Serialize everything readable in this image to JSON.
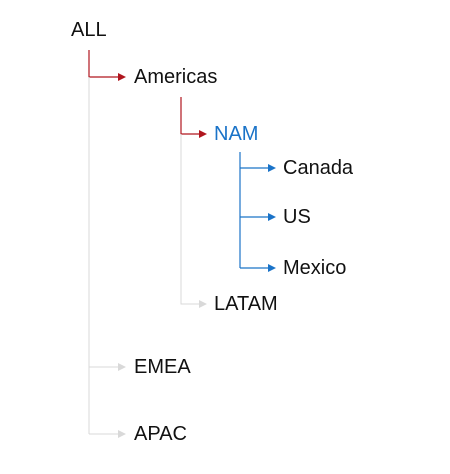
{
  "colors": {
    "active_path": "#b0161e",
    "child_path": "#1a73c8",
    "inactive_path": "#d9d9d9",
    "text": "#111111",
    "selected_text": "#1a73c8"
  },
  "tree": {
    "root": {
      "label": "ALL"
    },
    "americas": {
      "label": "Americas"
    },
    "nam": {
      "label": "NAM"
    },
    "canada": {
      "label": "Canada"
    },
    "us": {
      "label": "US"
    },
    "mexico": {
      "label": "Mexico"
    },
    "latam": {
      "label": "LATAM"
    },
    "emea": {
      "label": "EMEA"
    },
    "apac": {
      "label": "APAC"
    }
  }
}
